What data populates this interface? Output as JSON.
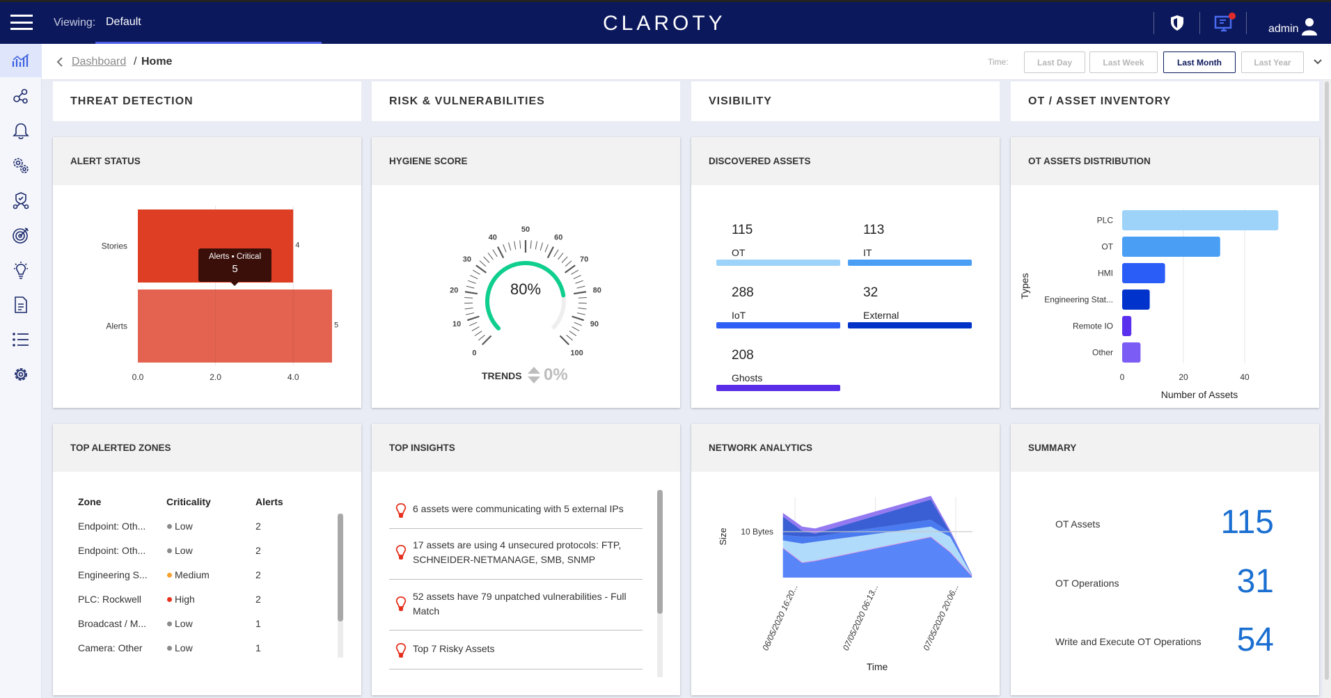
{
  "header": {
    "viewing_label": "Viewing:",
    "viewing_value": "Default",
    "logo": "CLAROTY",
    "user": "admin",
    "icons": [
      "hamburger-icon",
      "shield-icon",
      "monitor-alert-icon",
      "user-icon"
    ],
    "accent": "#0b185c"
  },
  "sidebar": {
    "items": [
      "dashboard-chart-icon",
      "network-nodes-icon",
      "bell-icon",
      "gears-icon",
      "shield-network-icon",
      "target-icon",
      "lightbulb-icon",
      "document-icon",
      "list-icon",
      "settings-icon"
    ]
  },
  "breadcrumb": {
    "parent": "Dashboard",
    "separator": "/",
    "current": "Home"
  },
  "time": {
    "label": "Time:",
    "options": [
      "Last Day",
      "Last Week",
      "Last Month",
      "Last Year"
    ],
    "selected": "Last Month"
  },
  "sections": [
    "THREAT DETECTION",
    "RISK & VULNERABILITIES",
    "VISIBILITY",
    "OT / ASSET INVENTORY"
  ],
  "alert_status": {
    "title": "ALERT STATUS",
    "tooltip": {
      "label": "Alerts",
      "series": "Critical",
      "value": "5"
    }
  },
  "hygiene": {
    "title": "HYGIENE SCORE",
    "value": 80,
    "value_label": "80%",
    "trends_label": "TRENDS",
    "trend_value": "0%",
    "scale": [
      "0",
      "10",
      "20",
      "30",
      "40",
      "50",
      "60",
      "70",
      "80",
      "90",
      "100"
    ],
    "color": "#10cf8e"
  },
  "discovered": {
    "title": "DISCOVERED ASSETS",
    "items": [
      {
        "count": "115",
        "label": "OT",
        "color": "#9dd3f8"
      },
      {
        "count": "113",
        "label": "IT",
        "color": "#4a9ff5"
      },
      {
        "count": "288",
        "label": "IoT",
        "color": "#2f5ff5"
      },
      {
        "count": "32",
        "label": "External",
        "color": "#0033c6"
      },
      {
        "count": "208",
        "label": "Ghosts",
        "color": "#5a2ee8"
      }
    ]
  },
  "ot_dist": {
    "title": "OT ASSETS DISTRIBUTION"
  },
  "zones": {
    "title": "TOP ALERTED ZONES",
    "columns": [
      "Zone",
      "Criticality",
      "Alerts"
    ],
    "rows": [
      {
        "zone": "Endpoint: Oth...",
        "crit": "Low",
        "color": "#8a8a8a",
        "alerts": "2"
      },
      {
        "zone": "Endpoint: Oth...",
        "crit": "Low",
        "color": "#8a8a8a",
        "alerts": "2"
      },
      {
        "zone": "Engineering S...",
        "crit": "Medium",
        "color": "#f7a030",
        "alerts": "2"
      },
      {
        "zone": "PLC: Rockwell",
        "crit": "High",
        "color": "#e8321e",
        "alerts": "2"
      },
      {
        "zone": "Broadcast / M...",
        "crit": "Low",
        "color": "#8a8a8a",
        "alerts": "1"
      },
      {
        "zone": "Camera: Other",
        "crit": "Low",
        "color": "#8a8a8a",
        "alerts": "1"
      }
    ]
  },
  "insights": {
    "title": "TOP INSIGHTS",
    "items": [
      {
        "l1": "6 assets were communicating with 5 external IPs",
        "l2": ""
      },
      {
        "l1": "17 assets are using 4 unsecured protocols: FTP,",
        "l2": "SCHNEIDER-NETMANAGE, SMB, SNMP"
      },
      {
        "l1": "52 assets have 79 unpatched vulnerabilities - Full",
        "l2": "Match"
      },
      {
        "l1": "Top 7 Risky Assets",
        "l2": ""
      }
    ]
  },
  "network": {
    "title": "NETWORK ANALYTICS"
  },
  "summary": {
    "title": "SUMMARY",
    "items": [
      {
        "label": "OT Assets",
        "value": "115"
      },
      {
        "label": "OT Operations",
        "value": "31"
      },
      {
        "label": "Write and Execute OT Operations",
        "value": "54"
      }
    ],
    "color": "#1a6fd1"
  },
  "chart_data": [
    {
      "type": "bar",
      "orientation": "horizontal",
      "categories": [
        "Stories",
        "Alerts"
      ],
      "values": [
        4,
        5
      ],
      "data_labels": [
        "4",
        "5"
      ],
      "colors": [
        "#de3f24",
        "#e46350"
      ],
      "xticks": [
        "0.0",
        "2.0",
        "4.0"
      ],
      "xlim": [
        0,
        5
      ],
      "grid": true
    },
    {
      "type": "bar",
      "orientation": "horizontal",
      "categories": [
        "PLC",
        "OT",
        "HMI",
        "Engineering Stat...",
        "Remote IO",
        "Other"
      ],
      "values": [
        51,
        32,
        14,
        9,
        3,
        6
      ],
      "colors": [
        "#9dd3f8",
        "#4a9ff5",
        "#2a5cf7",
        "#0033cc",
        "#5a30ee",
        "#7b5cf5"
      ],
      "xlabel": "Number of Assets",
      "ylabel": "Types",
      "xticks": [
        "0",
        "20",
        "40"
      ],
      "xlim": [
        0,
        52
      ],
      "grid": true
    },
    {
      "type": "area",
      "stacked": true,
      "xlabel": "Time",
      "ylabel": "Size",
      "yticks": [
        "10 Bytes"
      ],
      "ytick_values": [
        10
      ],
      "xticks": [
        "06/05/2020 16:20...",
        "07/05/2020 06:13...",
        "07/05/2020 20:06..."
      ],
      "x": [
        -0.15,
        0.09,
        0.25,
        1.69,
        1.93,
        2.2
      ],
      "series": [
        {
          "values": [
            6.5,
            3.3,
            3.7,
            8.9,
            5.6,
            0.4
          ],
          "color": "#4f7ef8"
        },
        {
          "values": [
            1.6,
            4.1,
            4.1,
            2.2,
            3.3,
            0.1
          ],
          "color": "#acd9fa"
        },
        {
          "values": [
            1.2,
            1.5,
            1.1,
            1.5,
            0.9,
            0.2
          ],
          "color": "#3f73ee"
        },
        {
          "values": [
            4.0,
            1.3,
            0.7,
            4.4,
            0.1,
            0
          ],
          "color": "#2f56d2"
        },
        {
          "values": [
            0.8,
            0.9,
            1.1,
            0.8,
            0.4,
            0
          ],
          "color": "#8e72f0"
        }
      ]
    }
  ]
}
